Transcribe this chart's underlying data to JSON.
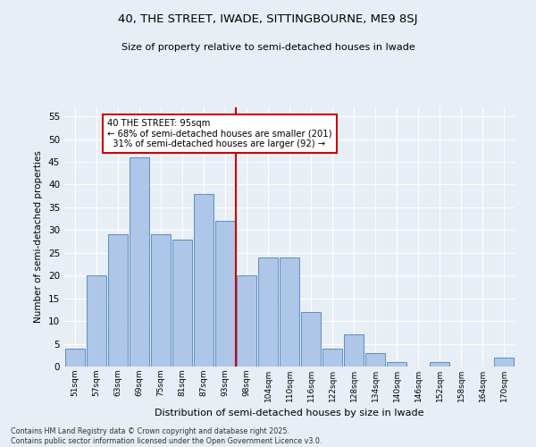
{
  "title": "40, THE STREET, IWADE, SITTINGBOURNE, ME9 8SJ",
  "subtitle": "Size of property relative to semi-detached houses in Iwade",
  "xlabel": "Distribution of semi-detached houses by size in Iwade",
  "ylabel": "Number of semi-detached properties",
  "categories": [
    "51sqm",
    "57sqm",
    "63sqm",
    "69sqm",
    "75sqm",
    "81sqm",
    "87sqm",
    "93sqm",
    "98sqm",
    "104sqm",
    "110sqm",
    "116sqm",
    "122sqm",
    "128sqm",
    "134sqm",
    "140sqm",
    "146sqm",
    "152sqm",
    "158sqm",
    "164sqm",
    "170sqm"
  ],
  "values": [
    4,
    20,
    29,
    46,
    29,
    28,
    38,
    32,
    20,
    24,
    24,
    12,
    4,
    7,
    3,
    1,
    0,
    1,
    0,
    0,
    2
  ],
  "bar_color": "#aec6e8",
  "bar_edge_color": "#5a8fc2",
  "vline_color": "#cc0000",
  "smaller_pct": 68,
  "smaller_count": 201,
  "larger_pct": 31,
  "larger_count": 92,
  "annotation_box_color": "#ffffff",
  "annotation_box_edge": "#cc0000",
  "ylim": [
    0,
    57
  ],
  "yticks": [
    0,
    5,
    10,
    15,
    20,
    25,
    30,
    35,
    40,
    45,
    50,
    55
  ],
  "background_color": "#e8eef5",
  "grid_color": "#ffffff",
  "footer": "Contains HM Land Registry data © Crown copyright and database right 2025.\nContains public sector information licensed under the Open Government Licence v3.0."
}
